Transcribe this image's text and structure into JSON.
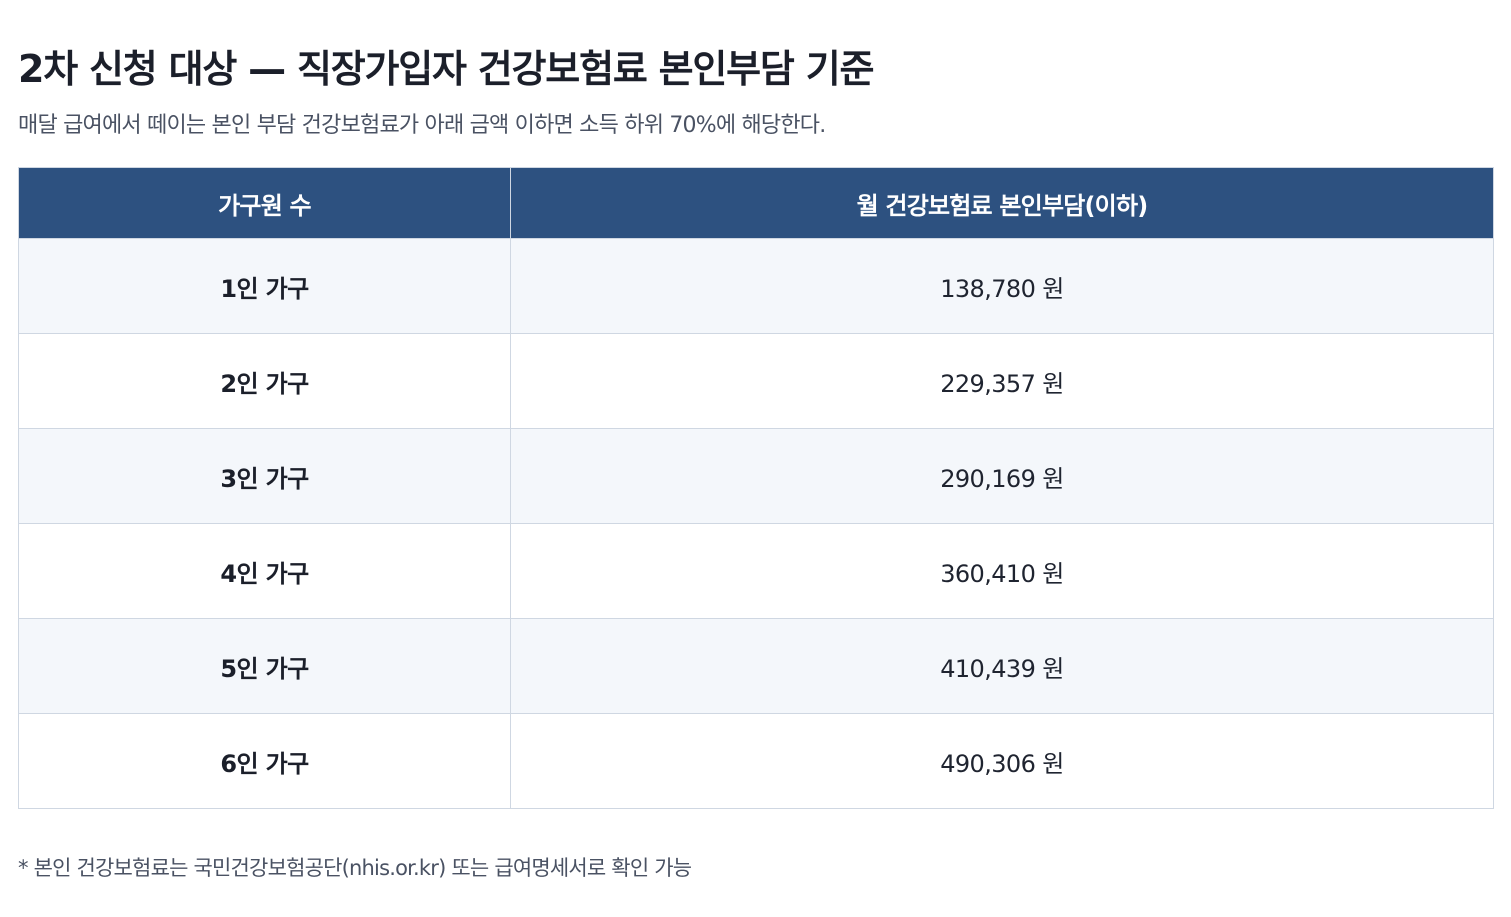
{
  "header": {
    "title": "2차 신청 대상 — 직장가입자 건강보험료 본인부담 기준",
    "subtitle": "매달 급여에서 떼이는 본인 부담 건강보험료가 아래 금액 이하면 소득 하위 70%에 해당한다."
  },
  "table": {
    "columns": [
      "가구원 수",
      "월 건강보험료 본인부담(이하)"
    ],
    "rows": [
      {
        "household": "1인 가구",
        "amount": "138,780 원"
      },
      {
        "household": "2인 가구",
        "amount": "229,357 원"
      },
      {
        "household": "3인 가구",
        "amount": "290,169 원"
      },
      {
        "household": "4인 가구",
        "amount": "360,410 원"
      },
      {
        "household": "5인 가구",
        "amount": "410,439 원"
      },
      {
        "household": "6인 가구",
        "amount": "490,306 원"
      }
    ]
  },
  "footnote": "* 본인 건강보험료는 국민건강보험공단(nhis.or.kr) 또는 급여명세서로 확인 가능",
  "colors": {
    "header_bg": "#2d5180",
    "header_text": "#ffffff",
    "row_alt_bg": "#f4f7fb",
    "border": "#cfd7e2",
    "title_text": "#1b1f2a",
    "muted_text": "#4a5263"
  }
}
